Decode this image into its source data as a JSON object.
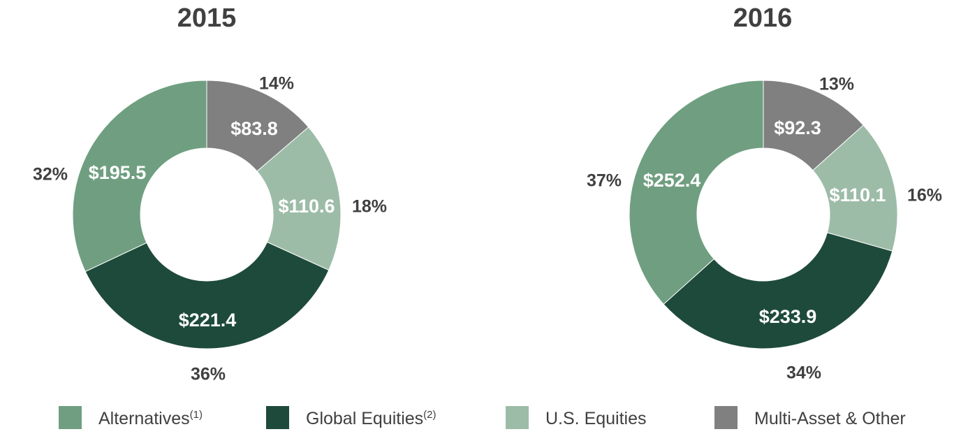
{
  "colors": {
    "alternatives": "#6f9f80",
    "global_equities": "#1e4a3b",
    "us_equities": "#9dbca8",
    "multi_asset": "#808080"
  },
  "legend": [
    {
      "label": "Alternatives",
      "note": "(1)",
      "color": "#6f9f80"
    },
    {
      "label": "Global Equities",
      "note": "(2)",
      "color": "#1e4a3b"
    },
    {
      "label": "U.S. Equities",
      "note": "",
      "color": "#9dbca8"
    },
    {
      "label": "Multi-Asset & Other",
      "note": "",
      "color": "#808080"
    }
  ],
  "chart_data": [
    {
      "type": "pie",
      "title": "2015",
      "categories": [
        "Multi-Asset & Other",
        "U.S. Equities",
        "Global Equities",
        "Alternatives"
      ],
      "values": [
        83.8,
        110.6,
        221.4,
        195.5
      ],
      "value_labels": [
        "$83.8",
        "$110.6",
        "$221.4",
        "$195.5"
      ],
      "percent_labels": [
        "14%",
        "18%",
        "36%",
        "32%"
      ],
      "legend_position": "bottom"
    },
    {
      "type": "pie",
      "title": "2016",
      "categories": [
        "Multi-Asset & Other",
        "U.S. Equities",
        "Global Equities",
        "Alternatives"
      ],
      "values": [
        92.3,
        110.1,
        233.9,
        252.4
      ],
      "value_labels": [
        "$92.3",
        "$110.1",
        "$233.9",
        "$252.4"
      ],
      "percent_labels": [
        "13%",
        "16%",
        "34%",
        "37%"
      ],
      "legend_position": "bottom"
    }
  ]
}
